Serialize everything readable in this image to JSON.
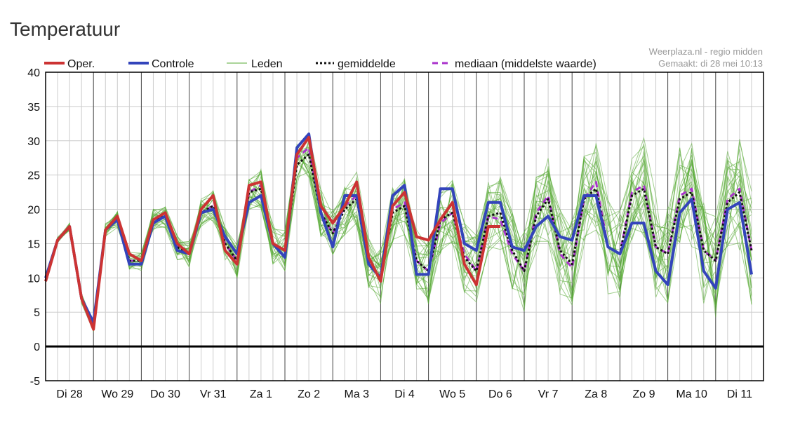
{
  "title": "Temperatuur",
  "source": {
    "line1": "Weerplaza.nl - regio midden",
    "line2": "Gemaakt: di 28 mei 10:13"
  },
  "colors": {
    "oper": "#cc3333",
    "controle": "#3344bb",
    "leden": "#55aa33",
    "gemiddelde": "#111111",
    "mediaan": "#aa33cc",
    "grid_major": "#444444",
    "grid_minor": "#cccccc",
    "zero_line": "#000000"
  },
  "chart_data": {
    "type": "line",
    "title": "Temperatuur",
    "xlabel": "",
    "ylabel": "",
    "ylim": [
      -5,
      40
    ],
    "yticks": [
      40,
      35,
      30,
      25,
      20,
      15,
      10,
      5,
      0,
      -5
    ],
    "grid": true,
    "legend_position": "top",
    "day_labels": [
      "Di 28",
      "Wo 29",
      "Do 30",
      "Vr 31",
      "Za 1",
      "Zo 2",
      "Ma 3",
      "Di 4",
      "Wo 5",
      "Do 6",
      "Vr 7",
      "Za 8",
      "Zo 9",
      "Ma 10",
      "Di 11"
    ],
    "steps_per_day": 4,
    "series": [
      {
        "name": "Oper.",
        "key": "oper",
        "values": [
          9.5,
          15.5,
          17.5,
          7,
          2.5,
          17,
          19,
          13.5,
          12.5,
          18.5,
          19.5,
          15,
          13.5,
          20,
          22,
          14,
          12,
          23.5,
          24,
          15,
          14,
          28,
          30.5,
          20.5,
          18,
          20.5,
          24,
          13,
          9.5,
          20.5,
          22.5,
          16,
          15.5,
          18.5,
          21,
          12,
          9,
          17.5,
          17.5
        ]
      },
      {
        "name": "Controle",
        "key": "controle",
        "values": [
          10,
          15.5,
          17.5,
          7,
          3.5,
          17,
          18.5,
          12,
          12,
          18,
          19,
          14,
          13.5,
          19.5,
          20,
          16,
          13.5,
          21,
          22,
          15,
          13,
          29,
          31,
          19.5,
          14.5,
          22,
          22,
          12,
          10,
          22,
          23.5,
          10.5,
          10.5,
          23,
          23,
          15,
          14,
          21,
          21,
          14.5,
          14,
          17.5,
          19,
          16,
          15.5,
          22,
          22,
          14.5,
          13.5,
          18,
          18,
          11,
          9,
          19.5,
          21.5,
          11,
          8.5,
          20,
          21,
          10.5
        ]
      },
      {
        "name": "Leden",
        "key": "leden",
        "values": []
      },
      {
        "name": "gemiddelde",
        "key": "gemiddelde",
        "values": [
          10,
          15.5,
          17.5,
          7,
          3,
          17,
          18.5,
          12.5,
          12.5,
          18.5,
          19,
          14.5,
          13.5,
          19.5,
          20.5,
          15,
          12.5,
          22.5,
          23,
          15,
          14,
          26.5,
          28,
          19.5,
          16.5,
          20,
          21.5,
          12,
          10,
          19.5,
          20.5,
          12.5,
          11,
          18.5,
          19.5,
          13,
          11,
          19,
          19.5,
          14,
          11,
          19,
          21.5,
          14,
          12,
          21.5,
          23,
          14.5,
          13.5,
          22,
          23,
          14.5,
          13.5,
          21.5,
          22.5,
          14,
          12.5,
          21,
          22.5,
          14
        ]
      },
      {
        "name": "mediaan (middelste waarde)",
        "key": "mediaan",
        "values": [
          10,
          15.5,
          17.5,
          7,
          3,
          17,
          18.5,
          12.5,
          12.5,
          18.5,
          19,
          14.5,
          13.5,
          19.5,
          20.5,
          15,
          12.5,
          22.5,
          23.5,
          15,
          14,
          27.5,
          29,
          19.5,
          16.5,
          20.5,
          22,
          12,
          10,
          20,
          21,
          12.5,
          11,
          18,
          19.5,
          13.5,
          11,
          19,
          18.5,
          13.5,
          11,
          19.5,
          22,
          13.5,
          11.5,
          21.5,
          24,
          14.5,
          13.5,
          22.5,
          23.5,
          14.5,
          13.5,
          22,
          23,
          14,
          12.5,
          21.5,
          23,
          14
        ]
      }
    ]
  }
}
